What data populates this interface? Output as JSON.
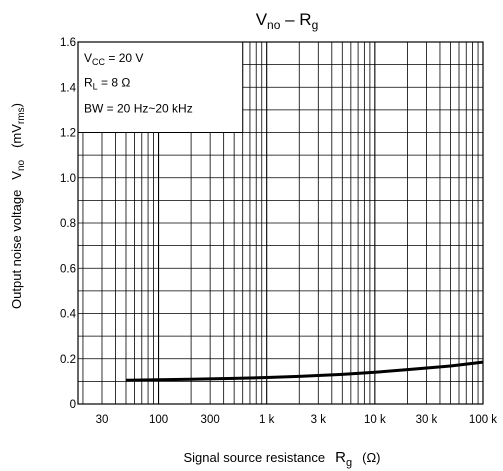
{
  "chart_data": {
    "type": "line",
    "title": {
      "main": "V",
      "main_sub": "no",
      "sep": " – R",
      "sep_sub": "g"
    },
    "xlabel": {
      "text": "Signal source resistance",
      "symbol": "R",
      "symbol_sub": "g",
      "unit": "(Ω)"
    },
    "ylabel": {
      "text": "Output noise voltage",
      "symbol": "V",
      "symbol_sub": "no",
      "unit_open": "(mV",
      "unit_sub": "rms",
      "unit_close": ")"
    },
    "x_scale": "log",
    "xlim": [
      18,
      100000
    ],
    "ylim": [
      0,
      1.6
    ],
    "x_ticks": [
      {
        "value": 30,
        "label": "30"
      },
      {
        "value": 100,
        "label": "100"
      },
      {
        "value": 300,
        "label": "300"
      },
      {
        "value": 1000,
        "label": "1 k"
      },
      {
        "value": 3000,
        "label": "3 k"
      },
      {
        "value": 10000,
        "label": "10 k"
      },
      {
        "value": 30000,
        "label": "30 k"
      },
      {
        "value": 100000,
        "label": "100 k"
      }
    ],
    "y_ticks": [
      {
        "value": 0,
        "label": "0"
      },
      {
        "value": 0.2,
        "label": "0.2"
      },
      {
        "value": 0.4,
        "label": "0.4"
      },
      {
        "value": 0.6,
        "label": "0.6"
      },
      {
        "value": 0.8,
        "label": "0.8"
      },
      {
        "value": 1.0,
        "label": "1.0"
      },
      {
        "value": 1.2,
        "label": "1.2"
      },
      {
        "value": 1.4,
        "label": "1.4"
      },
      {
        "value": 1.6,
        "label": "1.6"
      }
    ],
    "y_minor_step": 0.1,
    "grid": true,
    "conditions": [
      {
        "pre": "V",
        "sub": "CC",
        "post": " = 20 V"
      },
      {
        "pre": "R",
        "sub": "L",
        "post": " = 8 Ω"
      },
      {
        "pre": "BW = 20 Hz~20 kHz",
        "sub": "",
        "post": ""
      }
    ],
    "conditions_box_range": {
      "x": [
        18,
        1000
      ],
      "y": [
        1.2,
        1.6
      ]
    },
    "series": [
      {
        "x": [
          50,
          100,
          200,
          500,
          1000,
          2000,
          5000,
          10000,
          20000,
          50000,
          100000
        ],
        "y": [
          0.105,
          0.107,
          0.109,
          0.113,
          0.117,
          0.122,
          0.131,
          0.14,
          0.152,
          0.168,
          0.185
        ]
      }
    ]
  }
}
